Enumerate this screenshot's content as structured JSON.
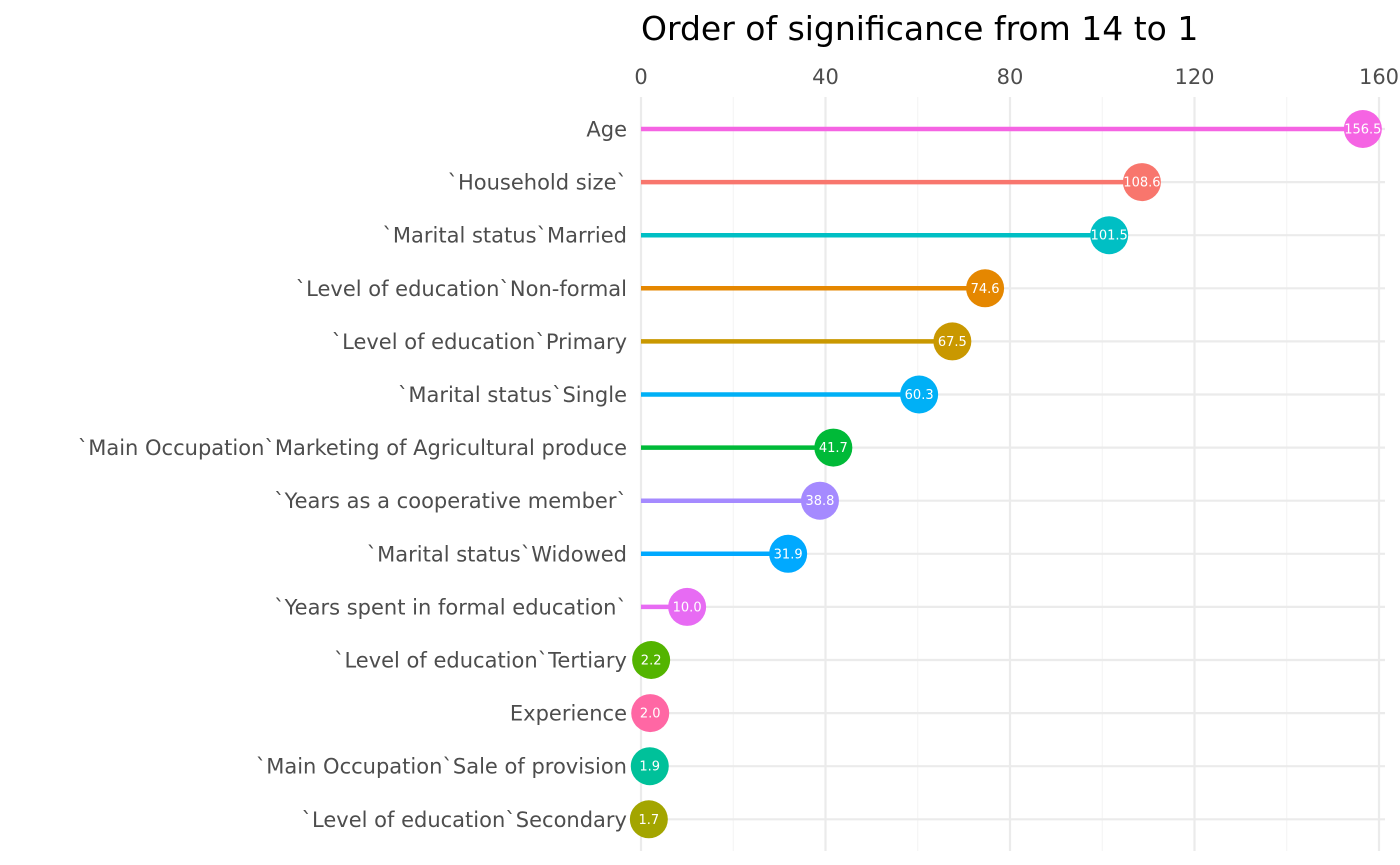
{
  "chart_data": {
    "type": "lollipop",
    "title": "Order of significance from 14 to 1",
    "xlabel": "",
    "ylabel": "",
    "xlim": [
      0,
      160
    ],
    "x_ticks": [
      0,
      40,
      80,
      120,
      160
    ],
    "grid": true,
    "legend": "none",
    "categories": [
      "Age",
      "`Household size`",
      "`Marital status`Married",
      "`Level  of education`Non-formal",
      "`Level  of education`Primary",
      "`Marital status`Single",
      "`Main Occupation`Marketing of Agricultural produce",
      "`Years as a cooperative member`",
      "`Marital status`Widowed",
      "`Years spent in formal education`",
      "`Level  of education`Tertiary",
      "Experience",
      "`Main Occupation`Sale of provision",
      "`Level  of education`Secondary"
    ],
    "values": [
      156.5,
      108.6,
      101.5,
      74.6,
      67.5,
      60.3,
      41.7,
      38.8,
      31.9,
      10.0,
      2.2,
      2.0,
      1.9,
      1.7
    ],
    "value_labels": [
      "156.5",
      "108.6",
      "101.5",
      "74.6",
      "67.5",
      "60.3",
      "41.7",
      "38.8",
      "31.9",
      "10.0",
      "2.2",
      "2.0",
      "1.9",
      "1.7"
    ],
    "colors": [
      "#F564E3",
      "#F8766D",
      "#00BFC4",
      "#E58700",
      "#C99800",
      "#00B0F6",
      "#00BA38",
      "#A58AFF",
      "#00A9FF",
      "#E76BF3",
      "#53B400",
      "#FF67A4",
      "#00C19A",
      "#A3A500"
    ]
  }
}
